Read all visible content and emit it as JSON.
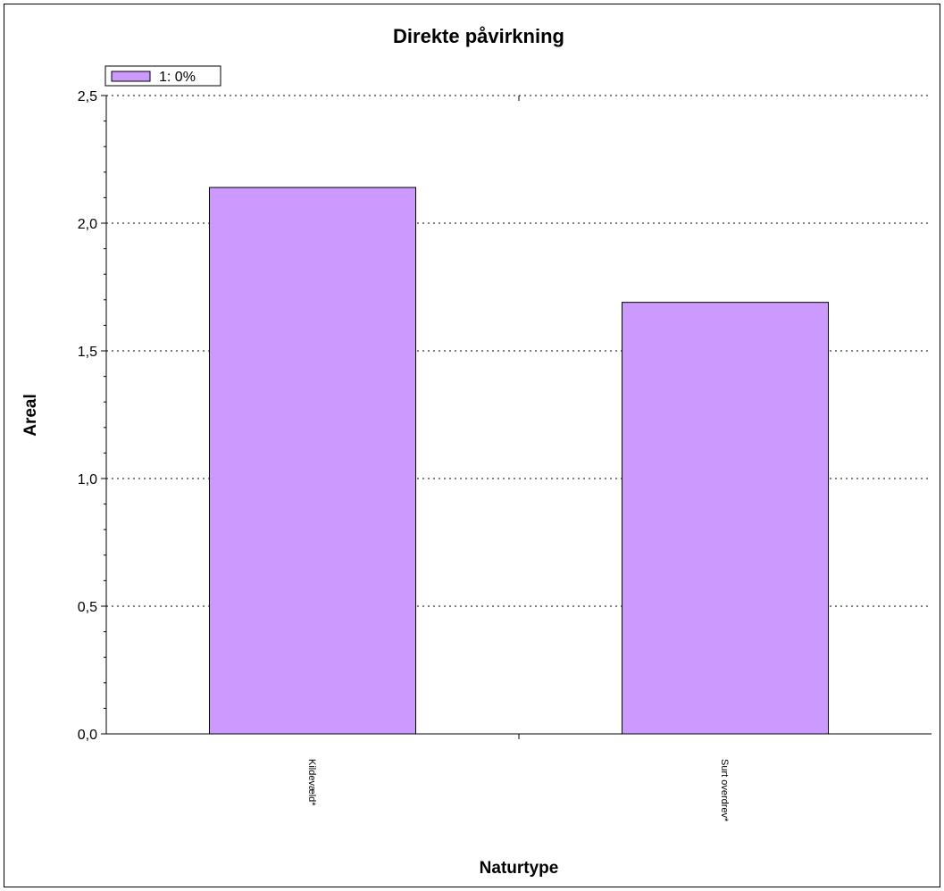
{
  "chart_data": {
    "type": "bar",
    "title": "Direkte påvirkning",
    "xlabel": "Naturtype",
    "ylabel": "Areal",
    "categories": [
      "Kildevæld*",
      "Surt overdrev*"
    ],
    "series": [
      {
        "name": "1: 0%",
        "values": [
          2.14,
          1.69
        ],
        "color": "#cc99ff"
      }
    ],
    "ylim": [
      0,
      2.5
    ],
    "yticks": [
      "0,0",
      "0,5",
      "1,0",
      "1,5",
      "2,0",
      "2,5"
    ],
    "ytick_values": [
      0,
      0.5,
      1.0,
      1.5,
      2.0,
      2.5
    ],
    "grid": "horizontal dotted",
    "legend_position": "top-left"
  }
}
